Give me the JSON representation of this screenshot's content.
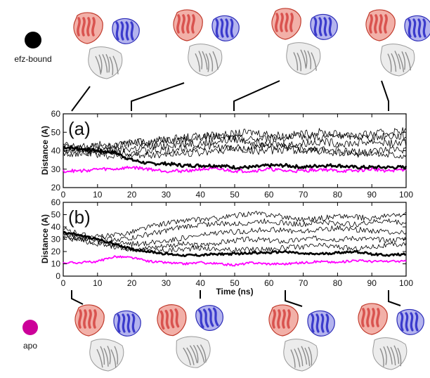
{
  "legend": {
    "efz": {
      "label": "efz-bound",
      "color": "#000000"
    },
    "apo": {
      "label": "apo",
      "color": "#cc0099"
    }
  },
  "colors": {
    "domain_red": "#d9534f",
    "domain_blue": "#3b3bcc",
    "domain_grey": "#c8c8c8",
    "efz_trace": "#000000",
    "apo_trace": "#ff00ff"
  },
  "chart_data": [
    {
      "type": "line",
      "panel_label": "(a)",
      "xlabel": "",
      "ylabel": "Distance (A)",
      "xlim": [
        0,
        100
      ],
      "ylim": [
        20,
        60
      ],
      "x_ticks": [
        "0",
        "10",
        "20",
        "30",
        "40",
        "50",
        "60",
        "70",
        "80",
        "90",
        "100"
      ],
      "y_ticks": [
        "20",
        "30",
        "40",
        "50",
        "60"
      ],
      "x": [
        0,
        5,
        10,
        15,
        20,
        25,
        30,
        35,
        40,
        45,
        50,
        55,
        60,
        65,
        70,
        75,
        80,
        85,
        90,
        95,
        100
      ],
      "series": [
        {
          "group": "efz",
          "bold": true,
          "values": [
            42,
            41,
            40,
            39,
            35,
            33,
            33,
            32,
            32,
            32,
            31,
            31,
            32,
            32,
            31,
            32,
            32,
            31,
            31,
            31,
            31
          ]
        },
        {
          "group": "efz",
          "bold": false,
          "values": [
            43,
            42,
            42,
            43,
            44,
            45,
            46,
            46,
            47,
            48,
            49,
            50,
            49,
            48,
            49,
            50,
            49,
            48,
            49,
            50,
            51
          ]
        },
        {
          "group": "efz",
          "bold": false,
          "values": [
            40,
            41,
            43,
            43,
            44,
            45,
            46,
            47,
            48,
            48,
            47,
            46,
            47,
            47,
            48,
            47,
            48,
            48,
            47,
            48,
            48
          ]
        },
        {
          "group": "efz",
          "bold": false,
          "values": [
            41,
            40,
            39,
            40,
            41,
            42,
            43,
            44,
            44,
            45,
            46,
            45,
            44,
            43,
            44,
            45,
            44,
            44,
            45,
            44,
            44
          ]
        },
        {
          "group": "efz",
          "bold": false,
          "values": [
            42,
            41,
            40,
            40,
            39,
            40,
            40,
            41,
            42,
            42,
            41,
            40,
            40,
            41,
            40,
            40,
            39,
            38,
            39,
            40,
            41
          ]
        },
        {
          "group": "efz",
          "bold": false,
          "values": [
            39,
            38,
            38,
            37,
            37,
            38,
            38,
            39,
            39,
            40,
            41,
            42,
            43,
            42,
            41,
            40,
            40,
            39,
            39,
            38,
            38
          ]
        },
        {
          "group": "apo",
          "bold": false,
          "values": [
            29,
            29,
            30,
            30,
            31,
            30,
            29,
            29,
            30,
            30,
            29,
            29,
            30,
            29,
            29,
            30,
            29,
            29,
            30,
            29,
            30
          ]
        }
      ]
    },
    {
      "type": "line",
      "panel_label": "(b)",
      "xlabel": "Time (ns)",
      "ylabel": "Distance (A)",
      "xlim": [
        0,
        100
      ],
      "ylim": [
        0,
        60
      ],
      "x_ticks": [
        "0",
        "10",
        "20",
        "30",
        "40",
        "50",
        "60",
        "70",
        "80",
        "90",
        "100"
      ],
      "y_ticks": [
        "0",
        "10",
        "20",
        "30",
        "40",
        "50",
        "60"
      ],
      "x": [
        0,
        5,
        10,
        15,
        20,
        25,
        30,
        35,
        40,
        45,
        50,
        55,
        60,
        65,
        70,
        75,
        80,
        85,
        90,
        95,
        100
      ],
      "series": [
        {
          "group": "efz",
          "bold": true,
          "values": [
            36,
            33,
            30,
            26,
            22,
            20,
            18,
            17,
            17,
            18,
            18,
            19,
            19,
            20,
            18,
            18,
            19,
            20,
            18,
            17,
            18
          ]
        },
        {
          "group": "efz",
          "bold": false,
          "values": [
            38,
            34,
            32,
            33,
            36,
            40,
            43,
            45,
            46,
            47,
            49,
            51,
            50,
            48,
            46,
            47,
            49,
            48,
            47,
            49,
            50
          ]
        },
        {
          "group": "efz",
          "bold": false,
          "values": [
            34,
            32,
            31,
            30,
            31,
            34,
            37,
            40,
            42,
            43,
            42,
            44,
            45,
            43,
            42,
            44,
            43,
            42,
            44,
            45,
            43
          ]
        },
        {
          "group": "efz",
          "bold": false,
          "values": [
            36,
            32,
            29,
            27,
            26,
            27,
            29,
            31,
            33,
            35,
            36,
            37,
            38,
            37,
            36,
            38,
            39,
            38,
            37,
            36,
            36
          ]
        },
        {
          "group": "efz",
          "bold": false,
          "values": [
            33,
            30,
            28,
            25,
            22,
            23,
            25,
            26,
            25,
            27,
            29,
            30,
            29,
            28,
            30,
            31,
            30,
            31,
            30,
            29,
            31
          ]
        },
        {
          "group": "efz",
          "bold": false,
          "values": [
            32,
            29,
            26,
            24,
            22,
            21,
            21,
            22,
            23,
            22,
            21,
            22,
            22,
            23,
            24,
            25,
            24,
            22,
            24,
            25,
            26
          ]
        },
        {
          "group": "apo",
          "bold": false,
          "values": [
            11,
            11,
            12,
            16,
            15,
            12,
            11,
            10,
            11,
            10,
            9,
            11,
            10,
            10,
            11,
            12,
            11,
            13,
            12,
            12,
            12
          ]
        }
      ]
    }
  ],
  "snapshots": {
    "top": {
      "group": "efz",
      "points_to_time": [
        2,
        20,
        50,
        95
      ]
    },
    "bottom": {
      "group": "apo",
      "points_to_time": [
        2,
        40,
        65,
        93
      ]
    }
  }
}
